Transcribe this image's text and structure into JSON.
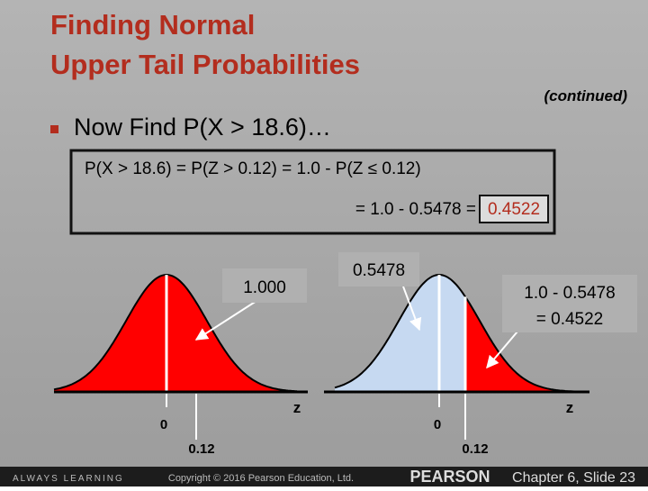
{
  "header": {
    "title_lines": [
      "Finding Normal",
      "Upper Tail Probabilities"
    ],
    "continued": "(continued)"
  },
  "bullet": "Now Find P(X > 18.6)…",
  "box": {
    "line1": "P(X > 18.6) = P(Z > 0.12) = 1.0 - P(Z ≤ 0.12)",
    "line2": "= 1.0 - 0.5478 =",
    "highlight": "0.4522"
  },
  "left_figure": {
    "area_label": "1.000",
    "axis_label": "z",
    "tick_labels": [
      "0",
      "0.12"
    ]
  },
  "right_figure": {
    "area_label": "0.5478",
    "tail_label_lines": [
      "1.0 - 0.5478",
      "= 0.4522"
    ],
    "axis_label": "z",
    "tick_labels": [
      "0",
      "0.12"
    ]
  },
  "footer": {
    "left": "ALWAYS LEARNING",
    "copyright": "Copyright © 2016 Pearson Education, Ltd.",
    "brand": "PEARSON",
    "slide": "Chapter 6, Slide 23"
  }
}
